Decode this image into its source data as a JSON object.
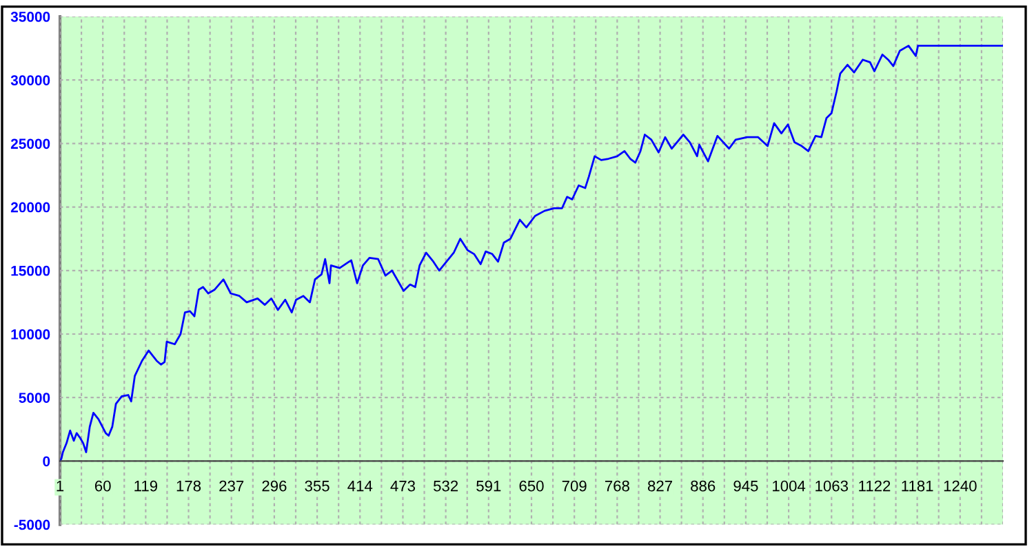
{
  "chart_data": {
    "type": "line",
    "xlim": [
      1,
      1299
    ],
    "ylim": [
      -5000,
      35000
    ],
    "xticks": [
      1,
      {
        "value": 30.5,
        "label": null
      },
      60,
      {
        "value": 89.5,
        "label": null
      },
      119,
      {
        "value": 148.5,
        "label": null
      },
      178,
      {
        "value": 207.5,
        "label": null
      },
      237,
      {
        "value": 266.5,
        "label": null
      },
      296,
      {
        "value": 325.5,
        "label": null
      },
      355,
      {
        "value": 384.5,
        "label": null
      },
      414,
      {
        "value": 443.5,
        "label": null
      },
      473,
      {
        "value": 502.5,
        "label": null
      },
      532,
      {
        "value": 561.5,
        "label": null
      },
      591,
      {
        "value": 620.5,
        "label": null
      },
      650,
      {
        "value": 679.5,
        "label": null
      },
      709,
      {
        "value": 738.5,
        "label": null
      },
      768,
      {
        "value": 797.5,
        "label": null
      },
      827,
      {
        "value": 856.5,
        "label": null
      },
      886,
      {
        "value": 915.5,
        "label": null
      },
      945,
      {
        "value": 974.5,
        "label": null
      },
      1004,
      {
        "value": 1033.5,
        "label": null
      },
      1063,
      {
        "value": 1092.5,
        "label": null
      },
      1122,
      {
        "value": 1151.5,
        "label": null
      },
      1181,
      {
        "value": 1210.5,
        "label": null
      },
      1240,
      {
        "value": 1269.5,
        "label": null
      },
      {
        "value": 1299,
        "label": null
      }
    ],
    "yticks": [
      -5000,
      0,
      5000,
      10000,
      15000,
      20000,
      25000,
      30000,
      35000
    ],
    "grid": true,
    "line_style": "solid",
    "series": [
      {
        "color": "#0000ff",
        "x": [
          1,
          3,
          5,
          10,
          15,
          20,
          24,
          29,
          33,
          37,
          42,
          47,
          54,
          64,
          68,
          73,
          78,
          86,
          95,
          99,
          104,
          114,
          123,
          134,
          140,
          145,
          148,
          159,
          167,
          173,
          180,
          186,
          192,
          198,
          205,
          214,
          226,
          236,
          248,
          258,
          273,
          283,
          292,
          301,
          311,
          320,
          326,
          336,
          345,
          352,
          361,
          366,
          372,
          374,
          386,
          399,
          402,
          410,
          418,
          427,
          439,
          449,
          458,
          474,
          483,
          490,
          496,
          505,
          515,
          523,
          533,
          543,
          552,
          562,
          571,
          580,
          587,
          596,
          604,
          612,
          621,
          634,
          643,
          655,
          668,
          681,
          692,
          699,
          706,
          715,
          724,
          729,
          737,
          746,
          756,
          768,
          778,
          786,
          793,
          800,
          806,
          815,
          825,
          834,
          843,
          859,
          868,
          878,
          881,
          893,
          906,
          922,
          931,
          947,
          962,
          975,
          984,
          994,
          1003,
          1012,
          1022,
          1031,
          1041,
          1049,
          1056,
          1063,
          1070,
          1075,
          1085,
          1094,
          1106,
          1116,
          1122,
          1133,
          1141,
          1148,
          1157,
          1169,
          1179,
          1182,
          1299
        ],
        "values": [
          0,
          200,
          700,
          1400,
          2400,
          1600,
          2200,
          1800,
          1400,
          700,
          2700,
          3800,
          3300,
          2200,
          2000,
          2700,
          4500,
          5100,
          5200,
          4700,
          6700,
          7900,
          8700,
          7900,
          7600,
          7800,
          9400,
          9200,
          10000,
          11700,
          11800,
          11400,
          13500,
          13700,
          13200,
          13500,
          14300,
          13200,
          13000,
          12500,
          12800,
          12300,
          12800,
          11900,
          12700,
          11700,
          12700,
          13000,
          12500,
          14300,
          14700,
          15900,
          14000,
          15400,
          15200,
          15700,
          15800,
          14000,
          15400,
          16000,
          15900,
          14600,
          15000,
          13400,
          13900,
          13700,
          15400,
          16400,
          15700,
          15000,
          15700,
          16400,
          17500,
          16600,
          16300,
          15500,
          16500,
          16300,
          15700,
          17200,
          17500,
          19000,
          18400,
          19300,
          19700,
          19900,
          19900,
          20800,
          20600,
          21700,
          21500,
          22400,
          24000,
          23700,
          23800,
          24000,
          24400,
          23800,
          23500,
          24400,
          25700,
          25300,
          24300,
          25500,
          24600,
          25700,
          25100,
          24000,
          24900,
          23600,
          25600,
          24600,
          25300,
          25500,
          25500,
          24800,
          26600,
          25800,
          26500,
          25100,
          24800,
          24400,
          25600,
          25500,
          27000,
          27400,
          29100,
          30500,
          31200,
          30600,
          31600,
          31400,
          30700,
          32000,
          31600,
          31100,
          32300,
          32700,
          31900,
          32700,
          32700
        ]
      }
    ]
  }
}
